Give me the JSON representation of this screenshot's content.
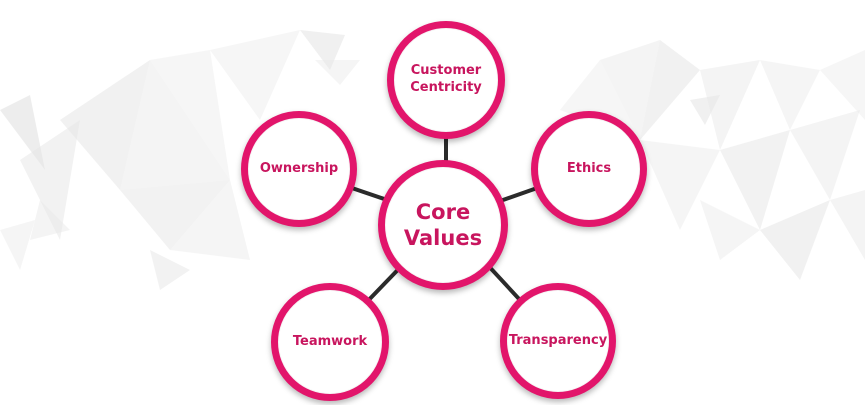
{
  "diagram": {
    "center": {
      "label": "Core\nValues"
    },
    "nodes": [
      {
        "id": "customer-centricity",
        "label": "Customer\nCentricity"
      },
      {
        "id": "ethics",
        "label": "Ethics"
      },
      {
        "id": "transparency",
        "label": "Transparency"
      },
      {
        "id": "teamwork",
        "label": "Teamwork"
      },
      {
        "id": "ownership",
        "label": "Ownership"
      }
    ]
  },
  "colors": {
    "accent": "#e2156b",
    "label": "#c8155e",
    "connector": "#2b2b2b",
    "background": "#ffffff",
    "pattern": "#e9e9e9"
  }
}
